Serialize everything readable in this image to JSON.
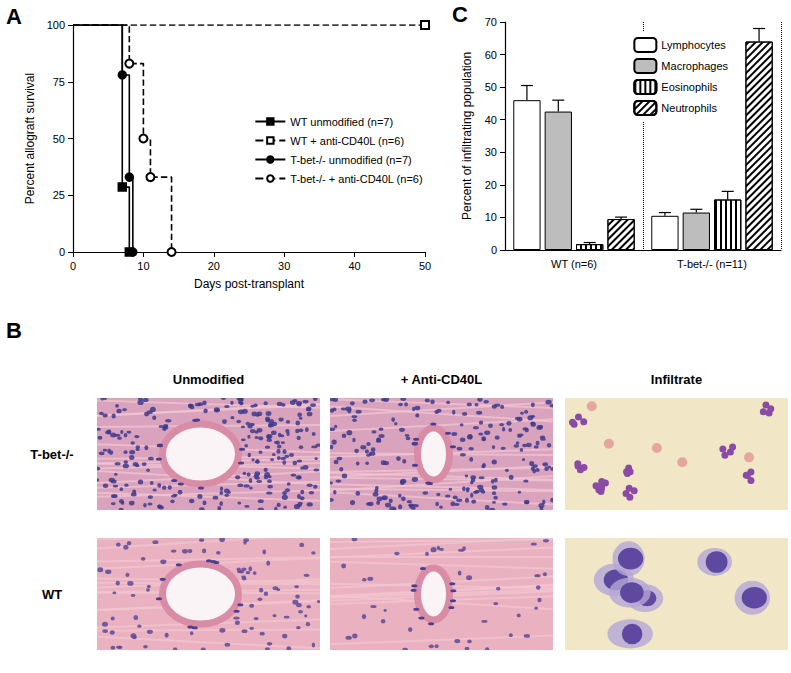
{
  "panels": [
    "A",
    "B",
    "C"
  ],
  "chart_data": [
    {
      "type": "line",
      "xlabel": "Days post-transplant",
      "ylabel": "Percent allograft survival",
      "xlim": [
        0,
        50
      ],
      "xticks": [
        0,
        10,
        20,
        30,
        40,
        50
      ],
      "ylim": [
        0,
        100
      ],
      "yticks": [
        0,
        25,
        50,
        75,
        100
      ],
      "grid": false,
      "legend": "right",
      "series": [
        {
          "name": "WT unmodified (n=7)",
          "color": "#000000",
          "marker": "square",
          "line_style": "solid",
          "x": [
            0,
            7,
            8
          ],
          "values": [
            100,
            28.6,
            0
          ]
        },
        {
          "name": "WT + anti-CD40L (n=6)",
          "color": "#000000",
          "marker": "open_square",
          "line_style": "dashed",
          "x": [
            0,
            50
          ],
          "values": [
            100,
            100
          ]
        },
        {
          "name": "T-bet-/- unmodified (n=7)",
          "color": "#000000",
          "marker": "circle",
          "line_style": "solid",
          "x": [
            0,
            7,
            8,
            8.5
          ],
          "values": [
            100,
            78,
            33,
            0
          ]
        },
        {
          "name": "T-bet-/- + anti-CD40L (n=6)",
          "color": "#000000",
          "marker": "open_circle",
          "line_style": "dashed",
          "x": [
            0,
            8,
            10,
            11,
            14
          ],
          "values": [
            100,
            83,
            50,
            33,
            0
          ]
        }
      ]
    },
    {
      "type": "bar",
      "ylabel": "Percent of infiltrating population",
      "categories": [
        "WT (n=6)",
        "T-bet-/- (n=11)"
      ],
      "ylim": [
        0,
        70
      ],
      "yticks": [
        0,
        10,
        20,
        30,
        40,
        50,
        60,
        70
      ],
      "grid": false,
      "legend": "upper right",
      "series": [
        {
          "name": "Lymphocytes",
          "color": "#ffffff",
          "values": [
            46,
            10.5
          ],
          "errors": [
            4.5,
            1
          ]
        },
        {
          "name": "Macrophages",
          "color": "#bdbdbd",
          "values": [
            42.5,
            11.5
          ],
          "errors": [
            3.5,
            1
          ]
        },
        {
          "name": "Eosinophils",
          "color": "#ffffff",
          "values": [
            1.8,
            15.5
          ],
          "errors": [
            0.5,
            2.5
          ]
        },
        {
          "name": "Neutrophils",
          "color": "#ffffff",
          "values": [
            9.5,
            64
          ],
          "errors": [
            0.6,
            4
          ]
        }
      ]
    }
  ],
  "image_panel": {
    "columns": [
      "Unmodified",
      "+ Anti-CD40L",
      "Infiltrate"
    ],
    "rows": [
      "T-bet-/-",
      "WT"
    ]
  }
}
